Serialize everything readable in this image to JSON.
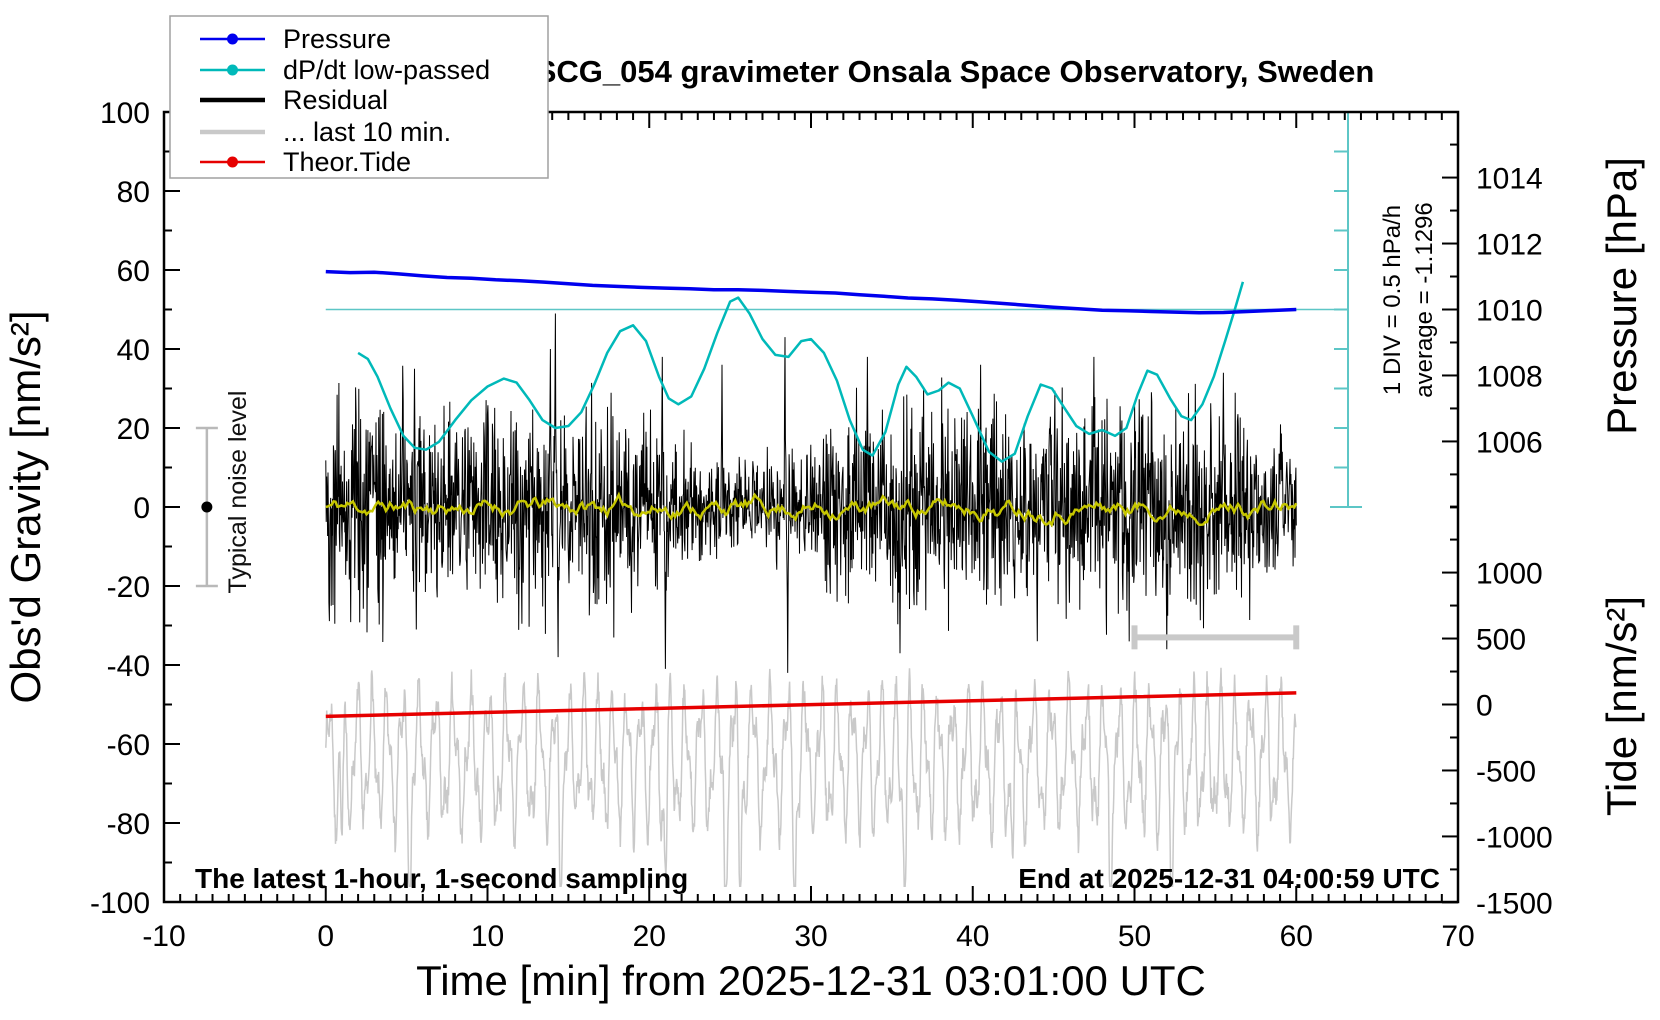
{
  "title": "SCG_054 gravimeter Onsala Space Observatory, Sweden",
  "legend": {
    "items": [
      {
        "label": "Pressure",
        "series": "pressure",
        "marker": true
      },
      {
        "label": "dP/dt low-passed",
        "series": "dpdt",
        "marker": true
      },
      {
        "label": "Residual",
        "series": "residual",
        "marker": false
      },
      {
        "label": "... last 10 min.",
        "series": "last10",
        "marker": false
      },
      {
        "label": "Theor.Tide",
        "series": "tide",
        "marker": true
      }
    ]
  },
  "annotations": {
    "bottom_left": "The latest 1-hour, 1-second sampling",
    "bottom_right": "End at 2025-12-31 04:00:59 UTC",
    "noise_marker_label": "Typical noise level",
    "div_scale_label": "1 DIV = 0.5 hPa/h",
    "average_label": "average = -1.1296"
  },
  "colors": {
    "pressure": "#0000ee",
    "dpdt": "#00b9b9",
    "residual": "#000000",
    "residual_lowpass": "#c6c600",
    "last10": "#c9c9c9",
    "tide": "#e60000",
    "scalebar": "#5cc6c6",
    "marker_gray": "#b9b9b9",
    "frame": "#000000",
    "legend_border": "#a0a0a0"
  },
  "chart_data": {
    "type": "line",
    "x_axis": {
      "label": "Time [min] from 2025-12-31 03:01:00 UTC",
      "range": [
        -10,
        70
      ],
      "major_tick": 10,
      "minor_tick": 1
    },
    "y_left": {
      "label": "Obs'd Gravity [nm/s²]",
      "range": [
        -100,
        100
      ],
      "major_tick": 20,
      "minor_tick": 10
    },
    "y_right_pressure": {
      "label": "Pressure [hPa]",
      "ticks_major": [
        1006,
        1008,
        1010,
        1012,
        1014
      ],
      "minor_step": 1,
      "tick_span": [
        1004,
        1015
      ],
      "gravity_of_1010": 50,
      "gravity_per_hpa": 8.35
    },
    "y_right_tide": {
      "label": "Tide [nm/s²]",
      "ticks_major": [
        -1500,
        -1000,
        -500,
        0,
        500,
        1000
      ],
      "minor_step": 250,
      "tick_span": [
        -1500,
        1500
      ],
      "gravity_of_0": -50,
      "gravity_per_unit": 0.0334
    },
    "reference_line": {
      "gravity": 50,
      "t_start": 0,
      "note": "cyan line at pressure 1010 hPa level"
    },
    "scale_bar": {
      "t": 63.2,
      "gravity_top": 100,
      "gravity_bottom": 0,
      "tick_step_gravity": 10
    },
    "noise_marker": {
      "t": -7.35,
      "center": 0,
      "half_range": 20
    },
    "last10_marker": {
      "t_start": 50,
      "t_end": 60,
      "gravity": -33
    },
    "series": [
      {
        "name": "Pressure",
        "key": "pressure",
        "unit": "hPa",
        "points": [
          [
            0,
            1011.15
          ],
          [
            1.5,
            1011.12
          ],
          [
            3,
            1011.13
          ],
          [
            4.5,
            1011.08
          ],
          [
            6,
            1011.02
          ],
          [
            7.5,
            1010.97
          ],
          [
            9,
            1010.95
          ],
          [
            10.5,
            1010.9
          ],
          [
            12,
            1010.87
          ],
          [
            13.5,
            1010.83
          ],
          [
            15,
            1010.78
          ],
          [
            16.5,
            1010.73
          ],
          [
            18,
            1010.7
          ],
          [
            19.5,
            1010.67
          ],
          [
            21,
            1010.65
          ],
          [
            22.5,
            1010.63
          ],
          [
            24,
            1010.6
          ],
          [
            25.5,
            1010.6
          ],
          [
            27,
            1010.58
          ],
          [
            28.5,
            1010.55
          ],
          [
            30,
            1010.52
          ],
          [
            31.5,
            1010.5
          ],
          [
            33,
            1010.45
          ],
          [
            34.5,
            1010.4
          ],
          [
            36,
            1010.35
          ],
          [
            37.5,
            1010.32
          ],
          [
            39,
            1010.28
          ],
          [
            40.5,
            1010.23
          ],
          [
            42,
            1010.18
          ],
          [
            43.5,
            1010.12
          ],
          [
            45,
            1010.07
          ],
          [
            46.5,
            1010.02
          ],
          [
            48,
            1009.98
          ],
          [
            49.5,
            1009.96
          ],
          [
            51,
            1009.94
          ],
          [
            52.5,
            1009.92
          ],
          [
            54,
            1009.9
          ],
          [
            55.5,
            1009.91
          ],
          [
            57,
            1009.94
          ],
          [
            58.5,
            1009.97
          ],
          [
            60,
            1010.0
          ]
        ]
      },
      {
        "name": "dP/dt low-passed",
        "key": "dpdt",
        "unit": "gravity-axis units (1 DIV = 0.5 hPa/h)",
        "points": [
          [
            2,
            39
          ],
          [
            2.6,
            37.5
          ],
          [
            3.2,
            33
          ],
          [
            4,
            25
          ],
          [
            4.8,
            18
          ],
          [
            5.5,
            15
          ],
          [
            6.2,
            14.5
          ],
          [
            7,
            16.5
          ],
          [
            8,
            22
          ],
          [
            9,
            27
          ],
          [
            10,
            30.5
          ],
          [
            11,
            32.5
          ],
          [
            11.8,
            31.5
          ],
          [
            12.6,
            27
          ],
          [
            13.4,
            22
          ],
          [
            14.2,
            20
          ],
          [
            15,
            20.5
          ],
          [
            15.8,
            24
          ],
          [
            16.6,
            31
          ],
          [
            17.4,
            39
          ],
          [
            18.2,
            44.5
          ],
          [
            19,
            46
          ],
          [
            19.8,
            42
          ],
          [
            20.6,
            33
          ],
          [
            21.2,
            27.5
          ],
          [
            21.8,
            26
          ],
          [
            22.6,
            28
          ],
          [
            23.4,
            35
          ],
          [
            24.2,
            44
          ],
          [
            25,
            52
          ],
          [
            25.5,
            53
          ],
          [
            26.2,
            49
          ],
          [
            27,
            42.5
          ],
          [
            27.8,
            38.5
          ],
          [
            28.6,
            38
          ],
          [
            29.4,
            42
          ],
          [
            30,
            42.5
          ],
          [
            30.8,
            39
          ],
          [
            31.6,
            32
          ],
          [
            32.4,
            22
          ],
          [
            33.2,
            14.5
          ],
          [
            33.8,
            13
          ],
          [
            34.6,
            19
          ],
          [
            35.4,
            31
          ],
          [
            35.9,
            35.5
          ],
          [
            36.5,
            33
          ],
          [
            37.2,
            28.5
          ],
          [
            37.9,
            29.5
          ],
          [
            38.5,
            31.5
          ],
          [
            39.2,
            30
          ],
          [
            40,
            23
          ],
          [
            41,
            14
          ],
          [
            41.8,
            11.5
          ],
          [
            42.6,
            13.5
          ],
          [
            43.4,
            23
          ],
          [
            44.2,
            31
          ],
          [
            44.9,
            30
          ],
          [
            45.6,
            25.5
          ],
          [
            46.4,
            20.5
          ],
          [
            47.2,
            18.5
          ],
          [
            48,
            19.5
          ],
          [
            48.8,
            18
          ],
          [
            49.5,
            20
          ],
          [
            50.2,
            28.5
          ],
          [
            50.8,
            34.5
          ],
          [
            51.4,
            33.5
          ],
          [
            52.2,
            27.5
          ],
          [
            52.9,
            23
          ],
          [
            53.5,
            22
          ],
          [
            54.2,
            26
          ],
          [
            54.9,
            33
          ],
          [
            55.6,
            42
          ],
          [
            56.2,
            50
          ],
          [
            56.7,
            57
          ]
        ]
      },
      {
        "name": "Residual",
        "key": "residual",
        "unit": "nm/s²",
        "generated_noise": {
          "t_range": [
            0,
            60
          ],
          "center": 0,
          "std": 11,
          "typical_band": [
            -30,
            30
          ],
          "spikes": [
            [
              5.5,
              35
            ],
            [
              5.6,
              -31
            ],
            [
              13.9,
              40
            ],
            [
              14.2,
              49
            ],
            [
              14.35,
              -38
            ],
            [
              20.8,
              38
            ],
            [
              21.0,
              -41
            ],
            [
              24.5,
              36
            ],
            [
              28.4,
              43
            ],
            [
              28.55,
              -42
            ],
            [
              33.5,
              38
            ],
            [
              35.5,
              -37
            ],
            [
              40.5,
              36
            ],
            [
              44.0,
              -34
            ],
            [
              47.5,
              38
            ],
            [
              52.0,
              -36
            ],
            [
              55.5,
              34
            ]
          ]
        }
      },
      {
        "name": "Residual low-passed",
        "key": "residual_lowpass",
        "unit": "nm/s²",
        "generated_noise": {
          "t_range": [
            0,
            60
          ],
          "center": 0,
          "amp": 2.5
        }
      },
      {
        "name": "... last 10 min. (expanded)",
        "key": "last10",
        "unit": "nm/s² (offset display)",
        "generated_noise": {
          "t_range": [
            0,
            60
          ],
          "center": -64,
          "main_amp": 14,
          "main_period": 0.97,
          "sub_amp": 6.5,
          "sub_period": 0.41,
          "noise": 3.5,
          "clamp": [
            -96,
            -38
          ],
          "down_spikes": [
            1.0,
            5.2,
            14.5,
            21.0,
            24.7,
            25.6,
            29.0,
            35.8,
            42.5,
            48.5,
            52.3
          ]
        }
      },
      {
        "name": "Theor.Tide",
        "key": "tide",
        "unit": "nm/s² (tide axis)",
        "points": [
          [
            0,
            -90
          ],
          [
            10,
            -60
          ],
          [
            20,
            -31
          ],
          [
            30,
            -1
          ],
          [
            40,
            28
          ],
          [
            50,
            58
          ],
          [
            60,
            88
          ]
        ]
      }
    ]
  }
}
